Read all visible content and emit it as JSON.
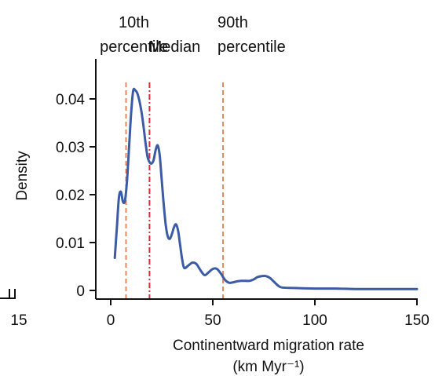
{
  "chart_data": {
    "type": "line",
    "xlabel": "Continentward migration rate",
    "xlabel_unit": "(km Myr⁻¹)",
    "ylabel": "Density",
    "xlim": [
      0,
      150
    ],
    "ylim": [
      0,
      0.045
    ],
    "x_ticks": [
      {
        "value": 0,
        "label": "0"
      },
      {
        "value": 50,
        "label": "50"
      },
      {
        "value": 100,
        "label": "100"
      },
      {
        "value": 150,
        "label": "150"
      }
    ],
    "y_ticks": [
      {
        "value": 0,
        "label": "0"
      },
      {
        "value": 0.01,
        "label": "0.01"
      },
      {
        "value": 0.02,
        "label": "0.02"
      },
      {
        "value": 0.03,
        "label": "0.03"
      },
      {
        "value": 0.04,
        "label": "0.04"
      }
    ],
    "series": [
      {
        "color": "#3b5ba5",
        "x": [
          2,
          3,
          4,
          5,
          6,
          7,
          8,
          9,
          10,
          11,
          12,
          13,
          14,
          15,
          16,
          17,
          18,
          19,
          20,
          21,
          22,
          23,
          24,
          25,
          26,
          27,
          28,
          29,
          30,
          31,
          32,
          33,
          34,
          35,
          36,
          38,
          40,
          42,
          44,
          46,
          48,
          50,
          52,
          54,
          56,
          58,
          60,
          62,
          64,
          66,
          68,
          70,
          72,
          74,
          76,
          78,
          80,
          82,
          84,
          90,
          100,
          110,
          120,
          130,
          140,
          150
        ],
        "y": [
          0.0068,
          0.013,
          0.0193,
          0.0206,
          0.0185,
          0.0188,
          0.023,
          0.03,
          0.037,
          0.0417,
          0.0418,
          0.0412,
          0.0397,
          0.0375,
          0.0345,
          0.031,
          0.028,
          0.0268,
          0.0265,
          0.0272,
          0.0293,
          0.0303,
          0.0282,
          0.023,
          0.0178,
          0.0135,
          0.0112,
          0.0108,
          0.0118,
          0.0132,
          0.0138,
          0.0125,
          0.0095,
          0.0065,
          0.0047,
          0.0052,
          0.0058,
          0.0055,
          0.0042,
          0.0032,
          0.0038,
          0.0045,
          0.0045,
          0.0035,
          0.0022,
          0.0016,
          0.0017,
          0.0019,
          0.002,
          0.002,
          0.002,
          0.0023,
          0.0028,
          0.003,
          0.003,
          0.0026,
          0.0018,
          0.001,
          0.0006,
          0.0005,
          0.0004,
          0.0004,
          0.0003,
          0.0003,
          0.0003,
          0.0003
        ]
      }
    ],
    "reference_lines": [
      {
        "x": 7.5,
        "label_line1": "10th",
        "label_line2": "percentile",
        "color": "#e8865c",
        "style": "dashed"
      },
      {
        "x": 19,
        "label_line1": "",
        "label_line2": "Median",
        "color": "#d62f3a",
        "style": "dashdot"
      },
      {
        "x": 55,
        "label_line1": "90th",
        "label_line2": "percentile",
        "color": "#e8865c",
        "style": "dashed"
      }
    ],
    "clipped_left_panel": {
      "tick_label": "15"
    }
  }
}
